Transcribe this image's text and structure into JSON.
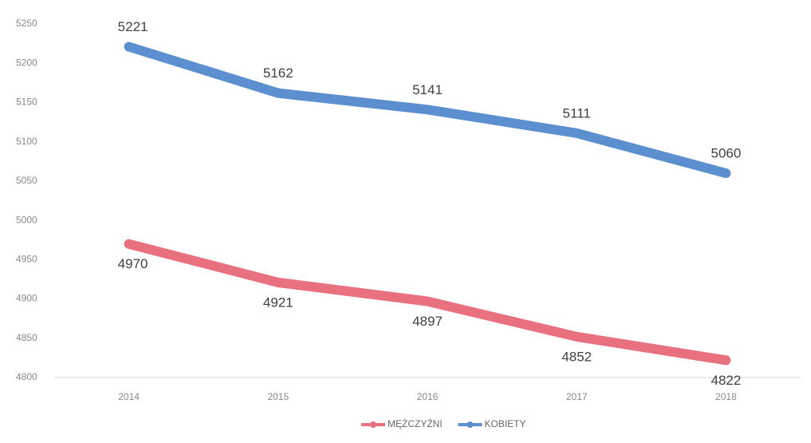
{
  "chart_data": {
    "type": "line",
    "categories": [
      "2014",
      "2015",
      "2016",
      "2017",
      "2018"
    ],
    "series": [
      {
        "name": "MĘŻCZYŹNI",
        "color": "#e8707f",
        "values": [
          4970,
          4921,
          4897,
          4852,
          4822
        ]
      },
      {
        "name": "KOBIETY",
        "color": "#5b8fd0",
        "values": [
          5221,
          5162,
          5141,
          5111,
          5060
        ]
      }
    ],
    "ylim": [
      4800,
      5250
    ],
    "yticks": [
      4800,
      4850,
      4900,
      4950,
      5000,
      5050,
      5100,
      5150,
      5200,
      5250
    ],
    "grid": false,
    "legend": "bottom"
  }
}
